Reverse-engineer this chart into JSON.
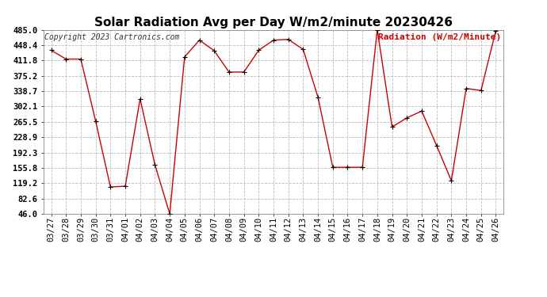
{
  "title": "Solar Radiation Avg per Day W/m2/minute 20230426",
  "copyright": "Copyright 2023 Cartronics.com",
  "legend_label": "Radiation (W/m2/Minute)",
  "dates": [
    "03/27",
    "03/28",
    "03/29",
    "03/30",
    "03/31",
    "04/01",
    "04/02",
    "04/03",
    "04/04",
    "04/05",
    "04/06",
    "04/07",
    "04/08",
    "04/09",
    "04/10",
    "04/11",
    "04/12",
    "04/13",
    "04/14",
    "04/15",
    "04/16",
    "04/17",
    "04/18",
    "04/19",
    "04/20",
    "04/21",
    "04/22",
    "04/23",
    "04/24",
    "04/25",
    "04/26"
  ],
  "values": [
    436,
    415,
    415,
    267,
    110,
    112,
    320,
    163,
    46,
    420,
    460,
    435,
    384,
    384,
    436,
    460,
    462,
    438,
    324,
    157,
    157,
    157,
    485,
    253,
    275,
    291,
    209,
    125,
    345,
    340,
    483
  ],
  "ylim": [
    46.0,
    485.0
  ],
  "yticks": [
    46.0,
    82.6,
    119.2,
    155.8,
    192.3,
    228.9,
    265.5,
    302.1,
    338.7,
    375.2,
    411.8,
    448.4,
    485.0
  ],
  "line_color": "#cc0000",
  "marker_color": "#000000",
  "bg_color": "#ffffff",
  "grid_color": "#bbbbbb",
  "title_fontsize": 11,
  "copyright_fontsize": 7,
  "legend_color": "#cc0000",
  "legend_fontsize": 8,
  "tick_fontsize": 7.5
}
